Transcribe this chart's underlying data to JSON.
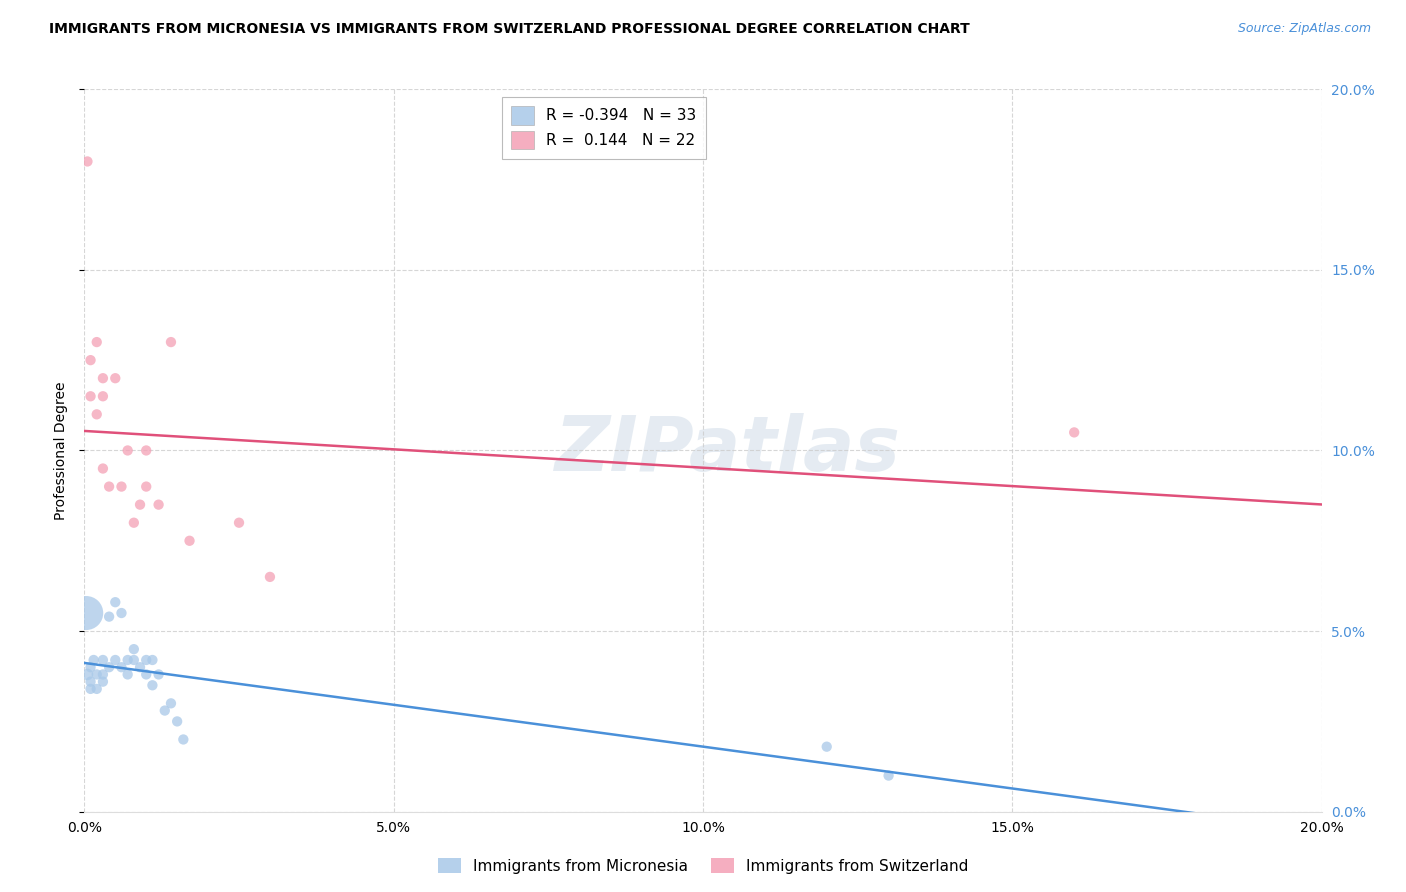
{
  "title": "IMMIGRANTS FROM MICRONESIA VS IMMIGRANTS FROM SWITZERLAND PROFESSIONAL DEGREE CORRELATION CHART",
  "source": "Source: ZipAtlas.com",
  "ylabel": "Professional Degree",
  "xlim": [
    0.0,
    0.2
  ],
  "ylim": [
    0.0,
    0.2
  ],
  "legend_entries": [
    {
      "label": "Immigrants from Micronesia",
      "color": "#a8c8e8",
      "R": "-0.394",
      "N": "33"
    },
    {
      "label": "Immigrants from Switzerland",
      "color": "#f4a0b5",
      "R": "0.144",
      "N": "22"
    }
  ],
  "micronesia_x": [
    0.0005,
    0.001,
    0.001,
    0.001,
    0.0015,
    0.002,
    0.002,
    0.003,
    0.003,
    0.003,
    0.004,
    0.004,
    0.005,
    0.005,
    0.006,
    0.006,
    0.007,
    0.007,
    0.008,
    0.008,
    0.009,
    0.01,
    0.01,
    0.011,
    0.011,
    0.012,
    0.013,
    0.014,
    0.015,
    0.016,
    0.12,
    0.13,
    0.0003
  ],
  "micronesia_y": [
    0.038,
    0.036,
    0.034,
    0.04,
    0.042,
    0.038,
    0.034,
    0.042,
    0.036,
    0.038,
    0.054,
    0.04,
    0.058,
    0.042,
    0.055,
    0.04,
    0.042,
    0.038,
    0.042,
    0.045,
    0.04,
    0.042,
    0.038,
    0.042,
    0.035,
    0.038,
    0.028,
    0.03,
    0.025,
    0.02,
    0.018,
    0.01,
    0.055
  ],
  "micronesia_sizes": [
    70,
    55,
    55,
    55,
    55,
    55,
    55,
    55,
    55,
    55,
    55,
    55,
    55,
    55,
    55,
    55,
    55,
    55,
    55,
    55,
    55,
    55,
    55,
    55,
    55,
    55,
    55,
    55,
    55,
    55,
    55,
    55,
    600
  ],
  "switzerland_x": [
    0.001,
    0.001,
    0.002,
    0.002,
    0.003,
    0.003,
    0.003,
    0.004,
    0.005,
    0.006,
    0.007,
    0.008,
    0.009,
    0.01,
    0.01,
    0.012,
    0.014,
    0.017,
    0.025,
    0.03,
    0.16,
    0.0005
  ],
  "switzerland_y": [
    0.125,
    0.115,
    0.13,
    0.11,
    0.12,
    0.095,
    0.115,
    0.09,
    0.12,
    0.09,
    0.1,
    0.08,
    0.085,
    0.09,
    0.1,
    0.085,
    0.13,
    0.075,
    0.08,
    0.065,
    0.105,
    0.18
  ],
  "switzerland_sizes": [
    55,
    55,
    55,
    55,
    55,
    55,
    55,
    55,
    55,
    55,
    55,
    55,
    55,
    55,
    55,
    55,
    55,
    55,
    55,
    55,
    55,
    55
  ],
  "micronesia_color": "#a8c8e8",
  "switzerland_color": "#f4a0b5",
  "micronesia_line_color": "#4a90d9",
  "switzerland_line_color": "#e0507a",
  "watermark_text": "ZIPatlas",
  "background_color": "#ffffff",
  "grid_color": "#cccccc",
  "xticks": [
    0.0,
    0.05,
    0.1,
    0.15,
    0.2
  ],
  "yticks": [
    0.0,
    0.05,
    0.1,
    0.15,
    0.2
  ]
}
